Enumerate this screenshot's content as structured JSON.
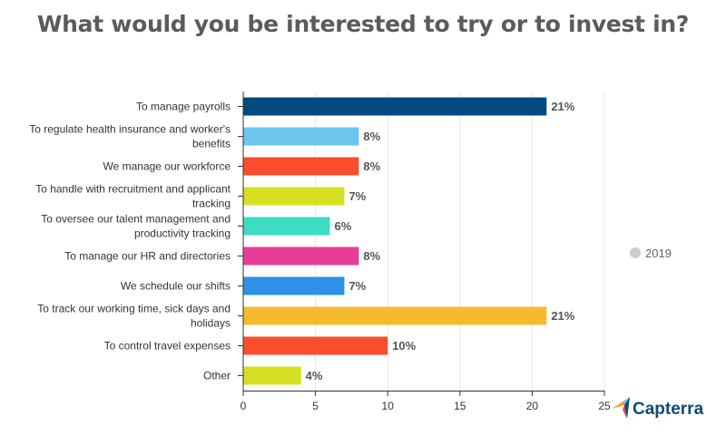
{
  "chart_data": {
    "type": "bar",
    "orientation": "horizontal",
    "title": "What would you be interested to try or to invest in?",
    "categories": [
      [
        "To manage payrolls"
      ],
      [
        "To regulate health insurance and worker's",
        "benefits"
      ],
      [
        "We manage our workforce"
      ],
      [
        "To handle with recruitment and applicant",
        "tracking"
      ],
      [
        "To oversee our talent management and",
        "productivity tracking"
      ],
      [
        "To manage our HR and directories"
      ],
      [
        "We schedule our shifts"
      ],
      [
        "To track our working time, sick days and",
        "holidays"
      ],
      [
        "To control travel expenses"
      ],
      [
        "Other"
      ]
    ],
    "series": [
      {
        "name": "2019",
        "values": [
          21,
          8,
          8,
          7,
          6,
          8,
          7,
          21,
          10,
          4
        ],
        "data_labels": [
          "21%",
          "8%",
          "8%",
          "7%",
          "6%",
          "8%",
          "7%",
          "21%",
          "10%",
          "4%"
        ],
        "colors": [
          "#014a7f",
          "#6bc6ef",
          "#f94d2d",
          "#d6df22",
          "#3fdcc4",
          "#e73d99",
          "#2e90e6",
          "#f6bb2d",
          "#f94d2d",
          "#d6df22"
        ]
      }
    ],
    "xlim": [
      0,
      25
    ],
    "xticks": [
      0,
      5,
      10,
      15,
      20,
      25
    ],
    "xtick_labels": [
      "0",
      "5",
      "10",
      "15",
      "20",
      "25"
    ],
    "grid": true,
    "legend": {
      "position": "right",
      "marker_color": "#cccccc"
    }
  },
  "brand": {
    "name": "Capterra",
    "colors": [
      "#ff9d28",
      "#68c5ed",
      "#044d80",
      "#e54747"
    ]
  }
}
